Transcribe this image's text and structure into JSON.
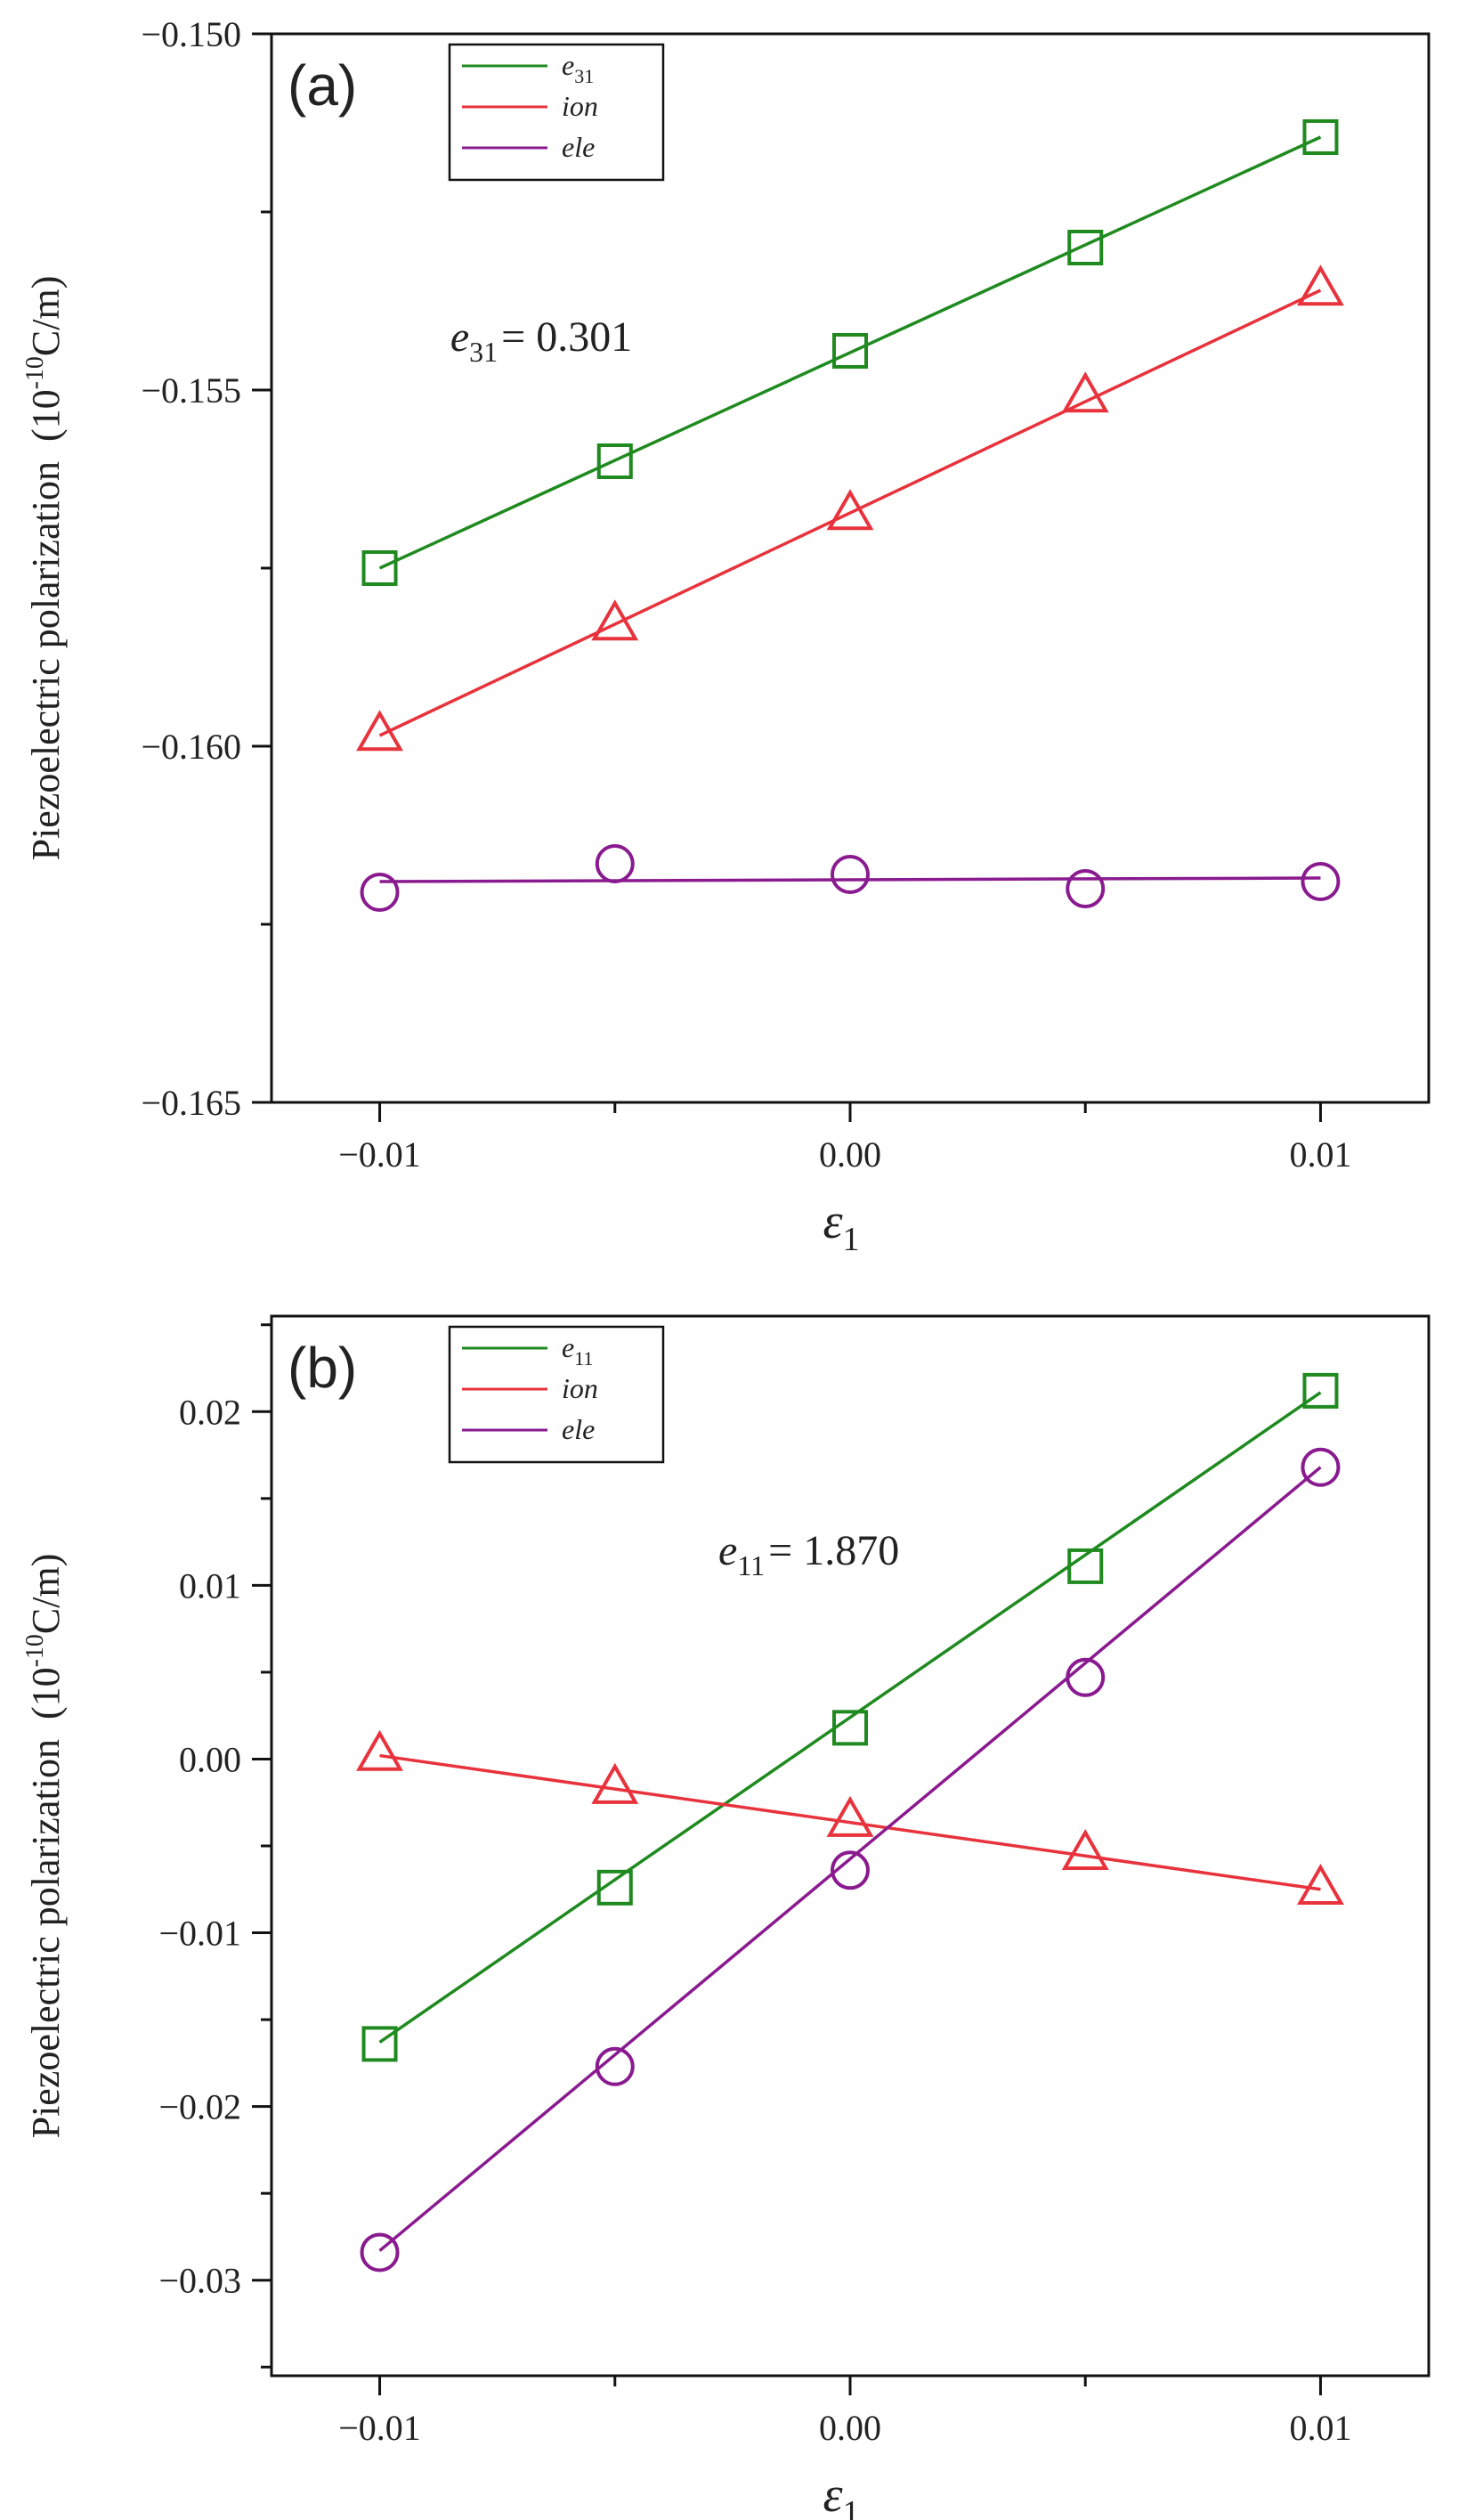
{
  "figure": {
    "ylabel_main": "Piezoelectric polarization",
    "ylabel_unit_open": "(10",
    "ylabel_unit_exp": "-10",
    "ylabel_unit_close": "C/m)",
    "xlabel_symbol": "ε",
    "xlabel_subscript": "1"
  },
  "chart_data": [
    {
      "type": "line",
      "panel_label": "(a)",
      "title": "",
      "xlabel": "ε1",
      "ylabel": "Piezoelectric polarization (10^-10 C/m)",
      "x": [
        -0.01,
        -0.005,
        0.0,
        0.005,
        0.01
      ],
      "xlim": [
        -0.0123,
        0.0123
      ],
      "ylim": [
        -0.165,
        -0.15
      ],
      "xticks": [
        -0.01,
        0.0,
        0.01
      ],
      "xtick_labels": [
        "−0.01",
        "0.00",
        "0.01"
      ],
      "yticks": [
        -0.165,
        -0.16,
        -0.155,
        -0.15
      ],
      "ytick_labels": [
        "−0.165",
        "−0.160",
        "−0.155",
        "−0.150"
      ],
      "grid": false,
      "legend_position": "top-left",
      "annotation": {
        "symbol": "e",
        "subscript": "31",
        "text": "= 0.301",
        "x": -0.0085,
        "y": -0.15445
      },
      "series": [
        {
          "name": "e",
          "name_sub": "31",
          "color": "#1f8a1f",
          "marker": "square",
          "values": [
            -0.1575,
            -0.156,
            -0.15445,
            -0.153,
            -0.15145
          ],
          "fit": [
            -0.1575,
            -0.15145
          ]
        },
        {
          "name": "ion",
          "name_sub": "",
          "color": "#e8323c",
          "marker": "triangle",
          "values": [
            -0.15985,
            -0.1583,
            -0.15675,
            -0.1551,
            -0.1536
          ],
          "fit": [
            -0.15985,
            -0.1536
          ]
        },
        {
          "name": "ele",
          "name_sub": "",
          "color": "#8a1a8f",
          "marker": "circle",
          "values": [
            -0.16205,
            -0.16165,
            -0.1618,
            -0.162,
            -0.1619
          ],
          "fit": [
            -0.1619,
            -0.16185
          ]
        }
      ]
    },
    {
      "type": "line",
      "panel_label": "(b)",
      "title": "",
      "xlabel": "ε1",
      "ylabel": "Piezoelectric polarization (10^-10 C/m)",
      "x": [
        -0.01,
        -0.005,
        0.0,
        0.005,
        0.01
      ],
      "xlim": [
        -0.0123,
        0.0123
      ],
      "ylim": [
        -0.0355,
        0.0255
      ],
      "xticks": [
        -0.01,
        0.0,
        0.01
      ],
      "xtick_labels": [
        "−0.01",
        "0.00",
        "0.01"
      ],
      "yticks": [
        -0.03,
        -0.02,
        -0.01,
        0.0,
        0.01,
        0.02
      ],
      "ytick_labels": [
        "−0.03",
        "−0.02",
        "−0.01",
        "0.00",
        "0.01",
        "0.02"
      ],
      "grid": false,
      "legend_position": "top-left",
      "annotation": {
        "symbol": "e",
        "subscript": "11",
        "text": "= 1.870",
        "x": -0.0028,
        "y": 0.0112
      },
      "series": [
        {
          "name": "e",
          "name_sub": "11",
          "color": "#1f8a1f",
          "marker": "square",
          "values": [
            -0.0164,
            -0.0074,
            0.0018,
            0.0111,
            0.0212
          ],
          "fit": [
            -0.0163,
            0.0211
          ]
        },
        {
          "name": "ion",
          "name_sub": "",
          "color": "#e8323c",
          "marker": "triangle",
          "values": [
            0.0002,
            -0.0017,
            -0.0036,
            -0.0055,
            -0.0075
          ],
          "fit": [
            0.0002,
            -0.0075
          ]
        },
        {
          "name": "ele",
          "name_sub": "",
          "color": "#8a1a8f",
          "marker": "circle",
          "values": [
            -0.0284,
            -0.0177,
            -0.0064,
            0.0047,
            0.0168
          ],
          "fit": [
            -0.0283,
            0.0168
          ]
        }
      ]
    }
  ]
}
